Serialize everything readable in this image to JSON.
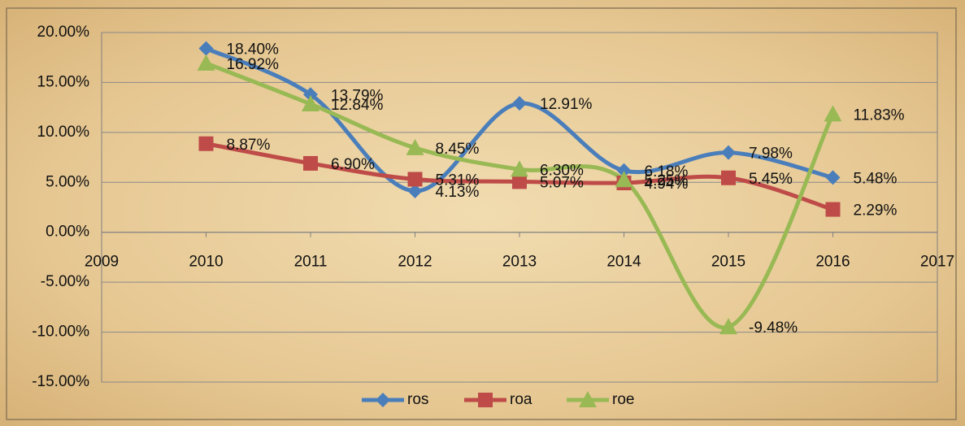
{
  "chart_data": {
    "type": "line",
    "x": [
      2010,
      2011,
      2012,
      2013,
      2014,
      2015,
      2016
    ],
    "series": [
      {
        "name": "ros",
        "color": "#4a7ebb",
        "marker": "diamond",
        "values": [
          18.4,
          13.79,
          4.13,
          12.91,
          6.18,
          7.98,
          5.48
        ],
        "value_labels": [
          "18.40%",
          "13.79%",
          "4.13%",
          "12.91%",
          "6.18%",
          "7.98%",
          "5.48%"
        ]
      },
      {
        "name": "roa",
        "color": "#be4b48",
        "marker": "square",
        "values": [
          8.87,
          6.9,
          5.31,
          5.07,
          4.94,
          5.45,
          2.29
        ],
        "value_labels": [
          "8.87%",
          "6.90%",
          "5.31%",
          "5.07%",
          "4.94%",
          "5.45%",
          "2.29%"
        ]
      },
      {
        "name": "roe",
        "color": "#98b954",
        "marker": "triangle",
        "values": [
          16.92,
          12.84,
          8.45,
          6.3,
          5.25,
          -9.48,
          11.83
        ],
        "value_labels": [
          "16.92%",
          "12.84%",
          "8.45%",
          "6.30%",
          "5.25%",
          "-9.48%",
          "11.83%"
        ]
      }
    ],
    "xlim": [
      2009,
      2017
    ],
    "xticks": [
      2009,
      2010,
      2011,
      2012,
      2013,
      2014,
      2015,
      2016,
      2017
    ],
    "ylim": [
      -15,
      20
    ],
    "yticks": [
      {
        "value": -15,
        "label": "-15.00%"
      },
      {
        "value": -10,
        "label": "-10.00%"
      },
      {
        "value": -5,
        "label": "-5.00%"
      },
      {
        "value": 0,
        "label": "0.00%"
      },
      {
        "value": 5,
        "label": "5.00%"
      },
      {
        "value": 10,
        "label": "10.00%"
      },
      {
        "value": 15,
        "label": "15.00%"
      },
      {
        "value": 20,
        "label": "20.00%"
      }
    ],
    "grid": true,
    "smooth": true,
    "legend": "bottom"
  }
}
